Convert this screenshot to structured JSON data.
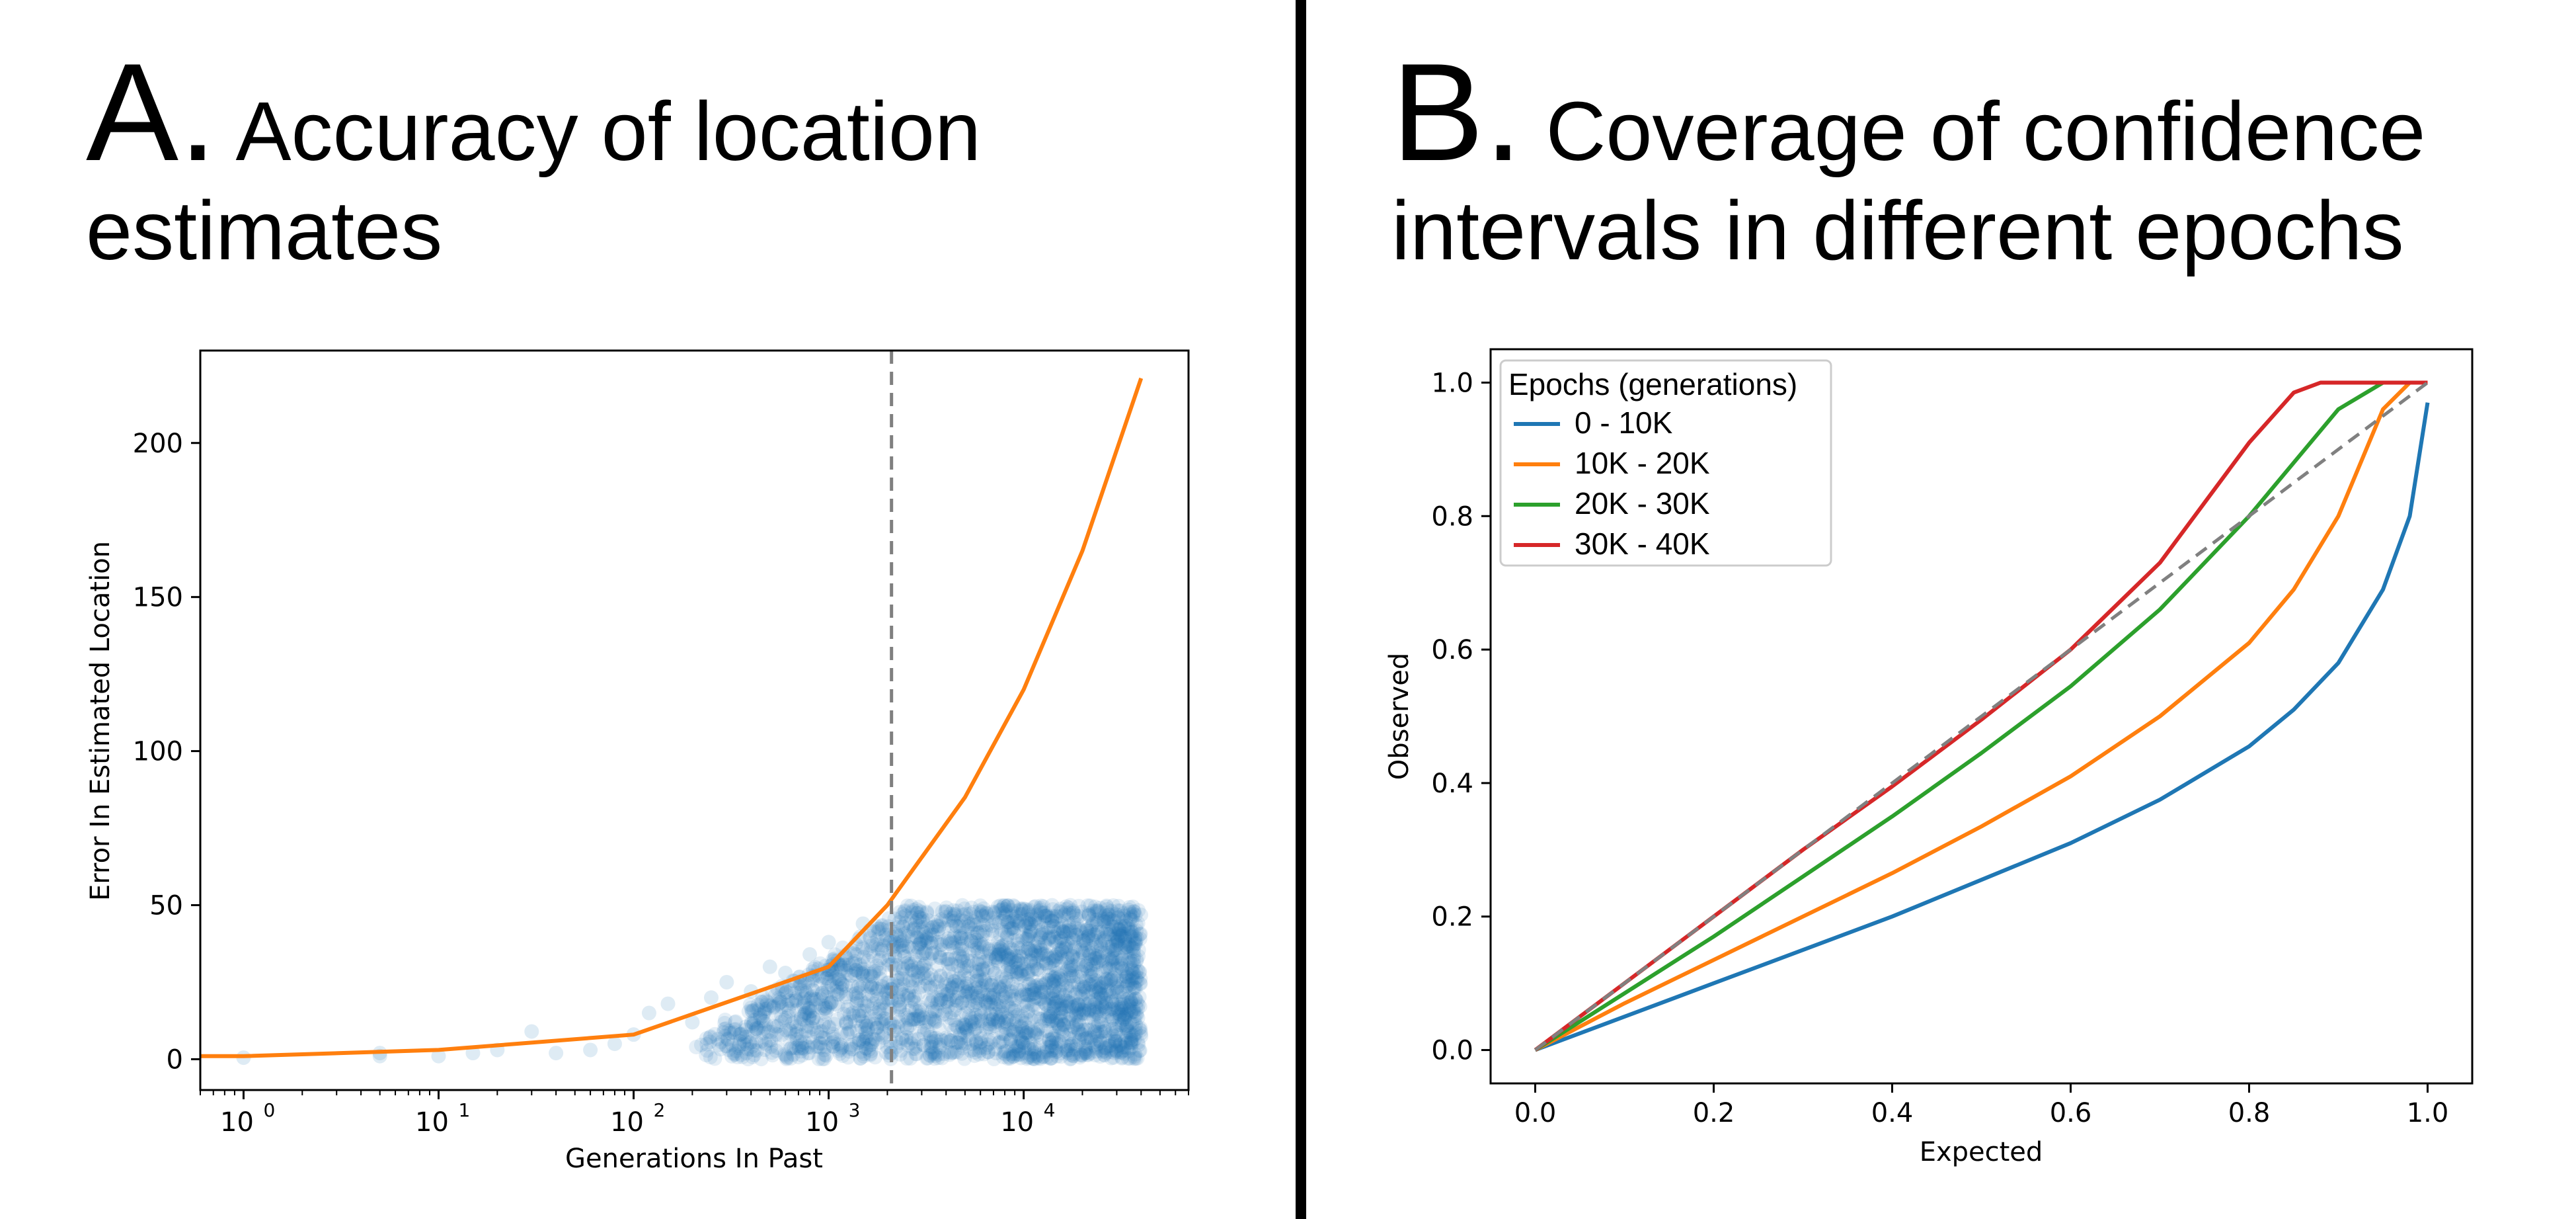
{
  "panels": {
    "a": {
      "letter": "A.",
      "title": "Accuracy of location estimates"
    },
    "b": {
      "letter": "B.",
      "title": "Coverage of confidence intervals in different epochs"
    }
  },
  "chart_data": [
    {
      "type": "scatter",
      "x_scale": "log",
      "xlabel": "Generations In Past",
      "ylabel": "Error In Estimated Location",
      "xlim": [
        0.6,
        70000
      ],
      "ylim": [
        -10,
        230
      ],
      "x_ticks": [
        {
          "value": 1,
          "base": "10",
          "exp": "0"
        },
        {
          "value": 10,
          "base": "10",
          "exp": "1"
        },
        {
          "value": 100,
          "base": "10",
          "exp": "2"
        },
        {
          "value": 1000,
          "base": "10",
          "exp": "3"
        },
        {
          "value": 10000,
          "base": "10",
          "exp": "4"
        }
      ],
      "y_ticks": [
        {
          "value": 0,
          "label": "0"
        },
        {
          "value": 50,
          "label": "50"
        },
        {
          "value": 100,
          "label": "100"
        },
        {
          "value": 150,
          "label": "150"
        },
        {
          "value": 200,
          "label": "200"
        }
      ],
      "vline_x": 2100,
      "grid": false,
      "series": [
        {
          "kind": "scatter",
          "color": "#1f77b4",
          "points_description_density": [
            {
              "x": 1,
              "y": 0.5
            },
            {
              "x": 5,
              "y": 1
            },
            {
              "x": 5,
              "y": 2
            },
            {
              "x": 10,
              "y": 1
            },
            {
              "x": 15,
              "y": 2
            },
            {
              "x": 20,
              "y": 3
            },
            {
              "x": 30,
              "y": 9
            },
            {
              "x": 40,
              "y": 2
            },
            {
              "x": 60,
              "y": 3
            },
            {
              "x": 80,
              "y": 5
            },
            {
              "x": 100,
              "y": 8
            },
            {
              "x": 120,
              "y": 15
            },
            {
              "x": 150,
              "y": 18
            },
            {
              "x": 200,
              "y": 12
            },
            {
              "x": 250,
              "y": 20
            },
            {
              "x": 300,
              "y": 25
            },
            {
              "x": 400,
              "y": 22
            },
            {
              "x": 500,
              "y": 30
            },
            {
              "x": 600,
              "y": 28
            },
            {
              "x": 800,
              "y": 34
            },
            {
              "x": 1000,
              "y": 38
            },
            {
              "x": 1500,
              "y": 44
            }
          ],
          "cloud_upper_bound": 50
        },
        {
          "kind": "line",
          "color": "#ff7f0e",
          "x": [
            0.6,
            1,
            10,
            100,
            1000,
            2000,
            5000,
            10000,
            20000,
            40000
          ],
          "y": [
            1,
            1,
            3,
            8,
            30,
            50,
            85,
            120,
            165,
            221
          ]
        }
      ]
    },
    {
      "type": "line",
      "xlabel": "Expected",
      "ylabel": "Observed",
      "xlim": [
        -0.05,
        1.05
      ],
      "ylim": [
        -0.05,
        1.05
      ],
      "x_ticks": [
        "0.0",
        "0.2",
        "0.4",
        "0.6",
        "0.8",
        "1.0"
      ],
      "y_ticks": [
        "0.0",
        "0.2",
        "0.4",
        "0.6",
        "0.8",
        "1.0"
      ],
      "legend_title": "Epochs (generations)",
      "legend_position": "top-left",
      "grid": false,
      "reference_line": {
        "x": [
          0,
          1
        ],
        "y": [
          0,
          1
        ],
        "color": "#808080",
        "style": "dashed"
      },
      "series": [
        {
          "name": "0 - 10K",
          "color": "#1f77b4",
          "x": [
            0,
            0.1,
            0.2,
            0.3,
            0.4,
            0.5,
            0.6,
            0.7,
            0.8,
            0.85,
            0.9,
            0.95,
            0.98,
            1.0
          ],
          "y": [
            0,
            0.05,
            0.1,
            0.15,
            0.2,
            0.255,
            0.31,
            0.375,
            0.455,
            0.51,
            0.58,
            0.69,
            0.8,
            0.97
          ]
        },
        {
          "name": "10K - 20K",
          "color": "#ff7f0e",
          "x": [
            0,
            0.1,
            0.2,
            0.3,
            0.4,
            0.5,
            0.6,
            0.7,
            0.8,
            0.85,
            0.9,
            0.95,
            0.98,
            1.0
          ],
          "y": [
            0,
            0.07,
            0.135,
            0.2,
            0.265,
            0.335,
            0.41,
            0.5,
            0.61,
            0.69,
            0.8,
            0.96,
            1.0,
            1.0
          ]
        },
        {
          "name": "20K - 30K",
          "color": "#2ca02c",
          "x": [
            0,
            0.1,
            0.2,
            0.3,
            0.4,
            0.5,
            0.6,
            0.7,
            0.8,
            0.85,
            0.9,
            0.95,
            0.98,
            1.0
          ],
          "y": [
            0,
            0.085,
            0.17,
            0.26,
            0.35,
            0.445,
            0.545,
            0.66,
            0.8,
            0.88,
            0.96,
            1.0,
            1.0,
            1.0
          ]
        },
        {
          "name": "30K - 40K",
          "color": "#d62728",
          "x": [
            0,
            0.1,
            0.2,
            0.3,
            0.4,
            0.5,
            0.6,
            0.7,
            0.75,
            0.8,
            0.85,
            0.88,
            0.9,
            1.0
          ],
          "y": [
            0,
            0.1,
            0.2,
            0.3,
            0.395,
            0.495,
            0.6,
            0.73,
            0.82,
            0.91,
            0.985,
            1.0,
            1.0,
            1.0
          ]
        }
      ]
    }
  ]
}
